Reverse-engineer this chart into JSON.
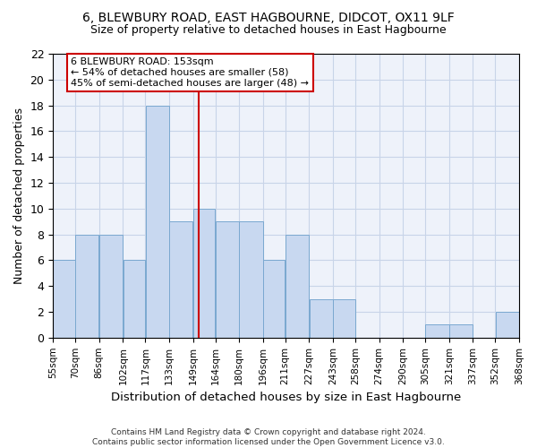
{
  "title": "6, BLEWBURY ROAD, EAST HAGBOURNE, DIDCOT, OX11 9LF",
  "subtitle": "Size of property relative to detached houses in East Hagbourne",
  "xlabel": "Distribution of detached houses by size in East Hagbourne",
  "ylabel": "Number of detached properties",
  "bar_edges": [
    55,
    70,
    86,
    102,
    117,
    133,
    149,
    164,
    180,
    196,
    211,
    227,
    243,
    258,
    274,
    290,
    305,
    321,
    337,
    352,
    368
  ],
  "bar_values": [
    6,
    8,
    8,
    6,
    18,
    9,
    10,
    9,
    9,
    6,
    8,
    3,
    3,
    0,
    0,
    0,
    1,
    1,
    0,
    2
  ],
  "bar_color": "#c8d8f0",
  "bar_edge_color": "#7aa8d0",
  "grid_color": "#c8d4e8",
  "background_color": "#ffffff",
  "axes_bg_color": "#eef2fa",
  "vline_x": 153,
  "vline_color": "#cc0000",
  "annotation_text": "6 BLEWBURY ROAD: 153sqm\n← 54% of detached houses are smaller (58)\n45% of semi-detached houses are larger (48) →",
  "annotation_box_facecolor": "#ffffff",
  "annotation_box_edgecolor": "#cc0000",
  "ylim": [
    0,
    22
  ],
  "yticks": [
    0,
    2,
    4,
    6,
    8,
    10,
    12,
    14,
    16,
    18,
    20,
    22
  ],
  "footer1": "Contains HM Land Registry data © Crown copyright and database right 2024.",
  "footer2": "Contains public sector information licensed under the Open Government Licence v3.0."
}
